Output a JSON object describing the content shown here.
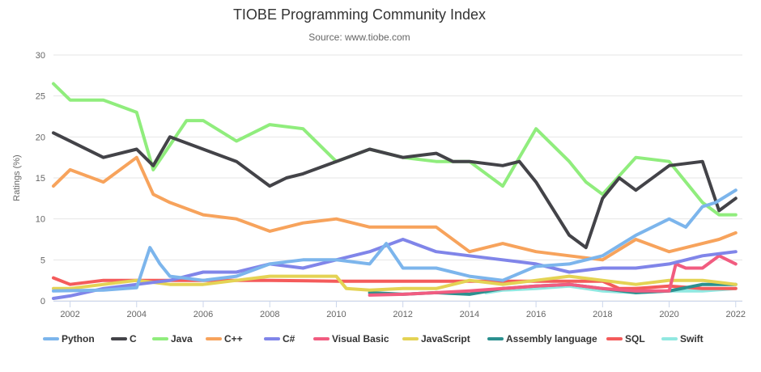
{
  "chart_data": {
    "type": "line",
    "title": "TIOBE Programming Community Index",
    "subtitle": "Source: www.tiobe.com",
    "xlabel": "",
    "ylabel": "Ratings (%)",
    "xlim": [
      2001.5,
      2022.2
    ],
    "ylim": [
      0,
      30
    ],
    "xticks": [
      "2002",
      "2004",
      "2006",
      "2008",
      "2010",
      "2012",
      "2014",
      "2016",
      "2018",
      "2020",
      "2022"
    ],
    "yticks": [
      "0",
      "5",
      "10",
      "15",
      "20",
      "25",
      "30"
    ],
    "grid": true,
    "legend_position": "bottom",
    "series": [
      {
        "name": "Python",
        "color": "#7cb5ec",
        "points": [
          [
            2001.5,
            1.2
          ],
          [
            2003,
            1.3
          ],
          [
            2004,
            1.6
          ],
          [
            2004.4,
            6.5
          ],
          [
            2004.7,
            4.5
          ],
          [
            2005,
            3
          ],
          [
            2006,
            2.5
          ],
          [
            2007,
            3
          ],
          [
            2008,
            4.5
          ],
          [
            2009,
            5
          ],
          [
            2010,
            5
          ],
          [
            2011,
            4.5
          ],
          [
            2011.5,
            7
          ],
          [
            2012,
            4
          ],
          [
            2013,
            4
          ],
          [
            2014,
            3
          ],
          [
            2015,
            2.5
          ],
          [
            2016,
            4.2
          ],
          [
            2017,
            4.5
          ],
          [
            2018,
            5.5
          ],
          [
            2019,
            8
          ],
          [
            2020,
            10
          ],
          [
            2020.5,
            9
          ],
          [
            2021,
            11.5
          ],
          [
            2021.4,
            12
          ],
          [
            2022,
            13.5
          ]
        ]
      },
      {
        "name": "C",
        "color": "#434348",
        "points": [
          [
            2001.5,
            20.5
          ],
          [
            2002,
            19.5
          ],
          [
            2003,
            17.5
          ],
          [
            2004,
            18.5
          ],
          [
            2004.5,
            16.5
          ],
          [
            2005,
            20
          ],
          [
            2006,
            18.5
          ],
          [
            2007,
            17
          ],
          [
            2008,
            14
          ],
          [
            2008.5,
            15
          ],
          [
            2009,
            15.5
          ],
          [
            2010,
            17
          ],
          [
            2011,
            18.5
          ],
          [
            2012,
            17.5
          ],
          [
            2013,
            18
          ],
          [
            2013.5,
            17
          ],
          [
            2014,
            17
          ],
          [
            2015,
            16.5
          ],
          [
            2015.5,
            17
          ],
          [
            2016,
            14.5
          ],
          [
            2017,
            8
          ],
          [
            2017.5,
            6.5
          ],
          [
            2018,
            12.5
          ],
          [
            2018.5,
            15
          ],
          [
            2019,
            13.5
          ],
          [
            2020,
            16.5
          ],
          [
            2021,
            17
          ],
          [
            2021.5,
            11
          ],
          [
            2022,
            12.5
          ]
        ]
      },
      {
        "name": "Java",
        "color": "#90ed7d",
        "points": [
          [
            2001.5,
            26.5
          ],
          [
            2002,
            24.5
          ],
          [
            2003,
            24.5
          ],
          [
            2004,
            23
          ],
          [
            2004.5,
            16
          ],
          [
            2005,
            19
          ],
          [
            2005.5,
            22
          ],
          [
            2006,
            22
          ],
          [
            2007,
            19.5
          ],
          [
            2008,
            21.5
          ],
          [
            2009,
            21
          ],
          [
            2010,
            17
          ],
          [
            2011,
            18.5
          ],
          [
            2012,
            17.5
          ],
          [
            2013,
            17
          ],
          [
            2013.5,
            17
          ],
          [
            2014,
            17
          ],
          [
            2015,
            14
          ],
          [
            2016,
            21
          ],
          [
            2017,
            17
          ],
          [
            2017.5,
            14.5
          ],
          [
            2018,
            13
          ],
          [
            2019,
            17.5
          ],
          [
            2020,
            17
          ],
          [
            2021,
            12
          ],
          [
            2021.5,
            10.5
          ],
          [
            2022,
            10.5
          ]
        ]
      },
      {
        "name": "C++",
        "color": "#f7a35c",
        "points": [
          [
            2001.5,
            14
          ],
          [
            2002,
            16
          ],
          [
            2003,
            14.5
          ],
          [
            2004,
            17.5
          ],
          [
            2004.5,
            13
          ],
          [
            2005,
            12
          ],
          [
            2006,
            10.5
          ],
          [
            2007,
            10
          ],
          [
            2008,
            8.5
          ],
          [
            2009,
            9.5
          ],
          [
            2010,
            10
          ],
          [
            2011,
            9
          ],
          [
            2012,
            9
          ],
          [
            2013,
            9
          ],
          [
            2014,
            6
          ],
          [
            2015,
            7
          ],
          [
            2016,
            6
          ],
          [
            2017,
            5.5
          ],
          [
            2018,
            5
          ],
          [
            2019,
            7.5
          ],
          [
            2020,
            6
          ],
          [
            2021,
            7
          ],
          [
            2021.5,
            7.5
          ],
          [
            2022,
            8.3
          ]
        ]
      },
      {
        "name": "C#",
        "color": "#8085e9",
        "points": [
          [
            2001.5,
            0.3
          ],
          [
            2002,
            0.6
          ],
          [
            2003,
            1.5
          ],
          [
            2004,
            2
          ],
          [
            2005,
            2.5
          ],
          [
            2006,
            3.5
          ],
          [
            2007,
            3.5
          ],
          [
            2008,
            4.5
          ],
          [
            2009,
            4
          ],
          [
            2010,
            5
          ],
          [
            2011,
            6
          ],
          [
            2012,
            7.5
          ],
          [
            2013,
            6
          ],
          [
            2014,
            5.5
          ],
          [
            2015,
            5
          ],
          [
            2016,
            4.5
          ],
          [
            2017,
            3.5
          ],
          [
            2018,
            4
          ],
          [
            2019,
            4
          ],
          [
            2020,
            4.5
          ],
          [
            2021,
            5.5
          ],
          [
            2022,
            6
          ]
        ]
      },
      {
        "name": "Visual Basic",
        "color": "#f15c80",
        "points": [
          [
            2011,
            0.7
          ],
          [
            2012,
            0.8
          ],
          [
            2013,
            1
          ],
          [
            2014,
            1.2
          ],
          [
            2015,
            1.5
          ],
          [
            2016,
            1.8
          ],
          [
            2017,
            2
          ],
          [
            2018,
            1.5
          ],
          [
            2019,
            1.2
          ],
          [
            2020,
            1.2
          ],
          [
            2020.2,
            4.5
          ],
          [
            2020.5,
            4
          ],
          [
            2021,
            4
          ],
          [
            2021.5,
            5.5
          ],
          [
            2022,
            4.5
          ]
        ]
      },
      {
        "name": "JavaScript",
        "color": "#e4d354",
        "points": [
          [
            2001.5,
            1.5
          ],
          [
            2002,
            1.5
          ],
          [
            2003,
            2
          ],
          [
            2004,
            2.5
          ],
          [
            2005,
            2
          ],
          [
            2006,
            2
          ],
          [
            2007,
            2.5
          ],
          [
            2008,
            3
          ],
          [
            2009,
            3
          ],
          [
            2010,
            3
          ],
          [
            2010.3,
            1.5
          ],
          [
            2011,
            1.3
          ],
          [
            2012,
            1.5
          ],
          [
            2013,
            1.5
          ],
          [
            2014,
            2.5
          ],
          [
            2015,
            2
          ],
          [
            2016,
            2.5
          ],
          [
            2017,
            3
          ],
          [
            2018,
            2.5
          ],
          [
            2019,
            2
          ],
          [
            2020,
            2.5
          ],
          [
            2021,
            2.5
          ],
          [
            2022,
            2
          ]
        ]
      },
      {
        "name": "Assembly language",
        "color": "#2b908f",
        "points": [
          [
            2011,
            1
          ],
          [
            2012,
            0.8
          ],
          [
            2013,
            1
          ],
          [
            2014,
            0.8
          ],
          [
            2015,
            1.5
          ],
          [
            2016,
            1.8
          ],
          [
            2017,
            2
          ],
          [
            2018,
            1.5
          ],
          [
            2019,
            1
          ],
          [
            2020,
            1.2
          ],
          [
            2021,
            2
          ],
          [
            2022,
            2
          ]
        ]
      },
      {
        "name": "SQL",
        "color": "#f45b5b",
        "points": [
          [
            2001.5,
            2.8
          ],
          [
            2002,
            2
          ],
          [
            2003,
            2.5
          ],
          [
            2004,
            2.5
          ],
          [
            2006,
            2.5
          ],
          [
            2008,
            2.5
          ],
          [
            2010,
            2.4
          ],
          [
            2012,
            2.4
          ],
          [
            2014,
            2.4
          ],
          [
            2016,
            2.4
          ],
          [
            2018,
            2.4
          ],
          [
            2018.5,
            1.5
          ],
          [
            2019,
            1.5
          ],
          [
            2020,
            1.8
          ],
          [
            2021,
            1.5
          ],
          [
            2022,
            1.5
          ]
        ]
      },
      {
        "name": "Swift",
        "color": "#91e8e1",
        "points": [
          [
            2014.5,
            1
          ],
          [
            2015,
            1.3
          ],
          [
            2016,
            1.5
          ],
          [
            2017,
            1.8
          ],
          [
            2018,
            1.2
          ],
          [
            2019,
            1
          ],
          [
            2020,
            1.2
          ],
          [
            2021,
            1.2
          ],
          [
            2022,
            1.5
          ]
        ]
      }
    ]
  }
}
